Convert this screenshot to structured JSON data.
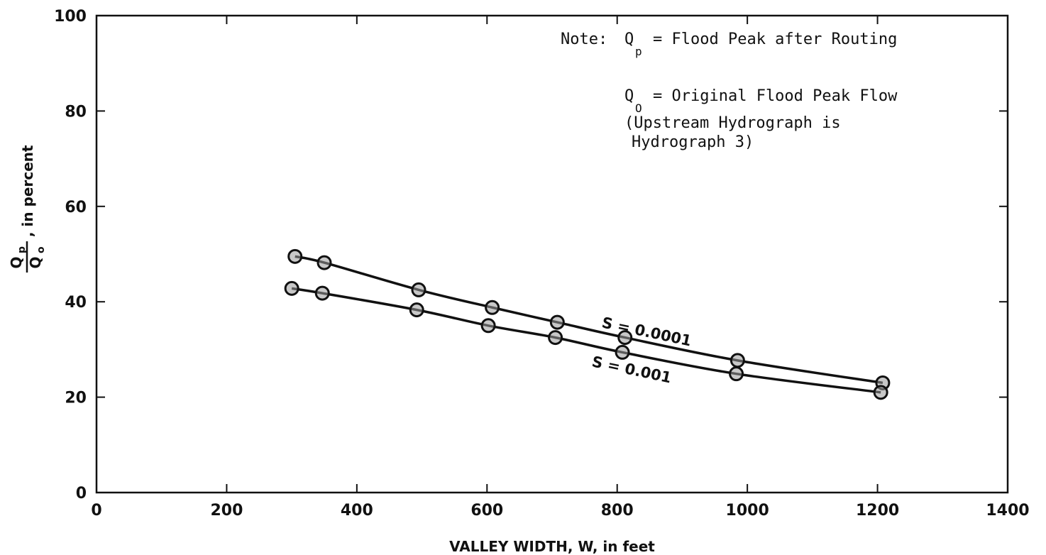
{
  "chart_data": {
    "type": "line",
    "xlabel": "VALLEY WIDTH, W, in feet",
    "ylabel": {
      "numerator": "Q",
      "numerator_sub": "p",
      "denominator": "Q",
      "denominator_sub": "o",
      "suffix": ", in percent"
    },
    "xlim": [
      0,
      1400
    ],
    "ylim": [
      0,
      100
    ],
    "x_ticks": [
      0,
      200,
      400,
      600,
      800,
      1000,
      1200,
      1400
    ],
    "y_ticks": [
      0,
      20,
      40,
      60,
      80,
      100
    ],
    "grid": false,
    "series": [
      {
        "name": "S = 0.0001",
        "label_text": "S = 0.0001",
        "x": [
          305,
          350,
          495,
          608,
          708,
          812,
          985,
          1208
        ],
        "y": [
          49.5,
          48.2,
          42.5,
          38.8,
          35.7,
          32.5,
          27.7,
          23.0
        ]
      },
      {
        "name": "S = 0.001",
        "label_text": "S = 0.001",
        "x": [
          300,
          347,
          492,
          602,
          705,
          808,
          983,
          1205
        ],
        "y": [
          42.8,
          41.8,
          38.3,
          35.0,
          32.5,
          29.4,
          24.9,
          21.0
        ]
      }
    ],
    "note": {
      "prefix": "Note:",
      "line1_sym": "Q",
      "line1_sub": "p",
      "line1_text": "= Flood Peak after Routing",
      "line2_sym": "Q",
      "line2_sub": "O",
      "line2_text": "= Original Flood Peak Flow",
      "line3": "(Upstream Hydrograph is",
      "line4": "Hydrograph 3)"
    }
  }
}
